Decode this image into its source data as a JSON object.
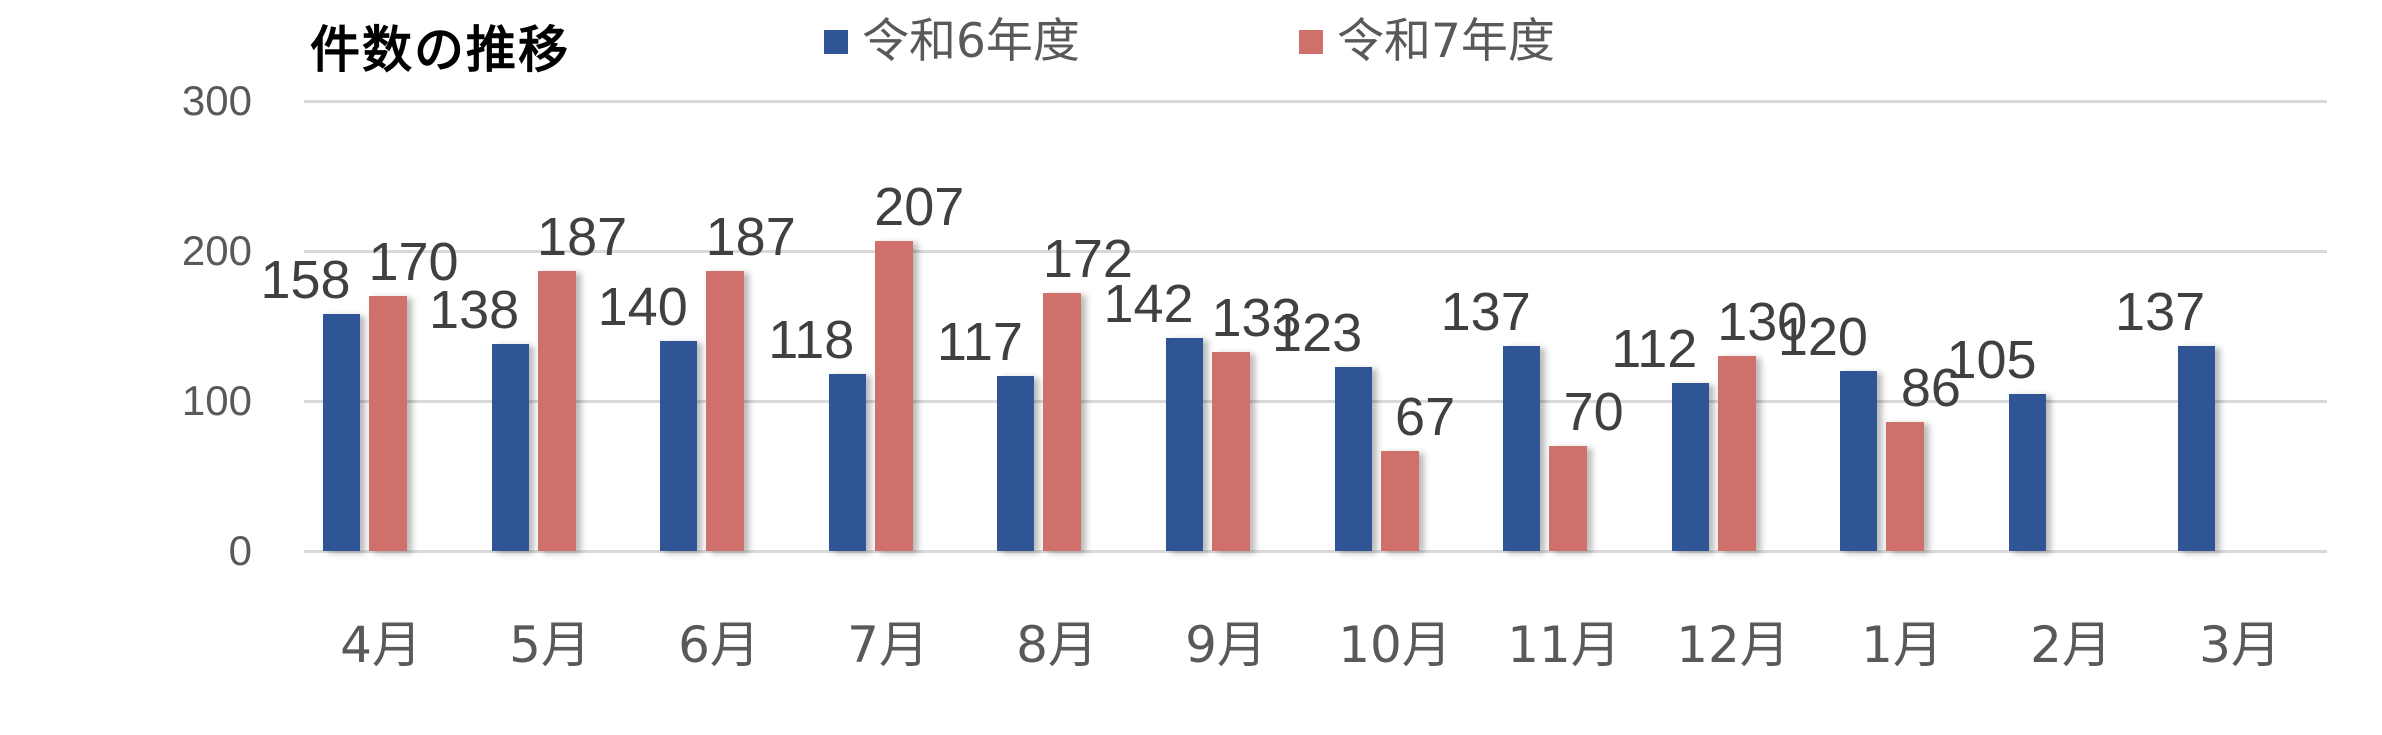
{
  "chart_data": {
    "type": "bar",
    "title": "件数の推移",
    "categories": [
      "4月",
      "5月",
      "6月",
      "7月",
      "8月",
      "9月",
      "10月",
      "11月",
      "12月",
      "1月",
      "2月",
      "3月"
    ],
    "series": [
      {
        "name": "令和6年度",
        "color": "#2F5597",
        "values": [
          158,
          138,
          140,
          118,
          117,
          142,
          123,
          137,
          112,
          120,
          105,
          137
        ]
      },
      {
        "name": "令和7年度",
        "color": "#D0706A",
        "values": [
          170,
          187,
          187,
          207,
          172,
          133,
          67,
          70,
          130,
          86,
          null,
          null
        ]
      }
    ],
    "xlabel": "",
    "ylabel": "",
    "ylim": [
      0,
      300
    ],
    "yticks": [
      0,
      100,
      200,
      300
    ],
    "grid": true,
    "legend_position": "top",
    "data_labels": true
  },
  "legend": [
    {
      "label": "令和6年度",
      "color": "#2F5597"
    },
    {
      "label": "令和7年度",
      "color": "#D0706A"
    }
  ]
}
